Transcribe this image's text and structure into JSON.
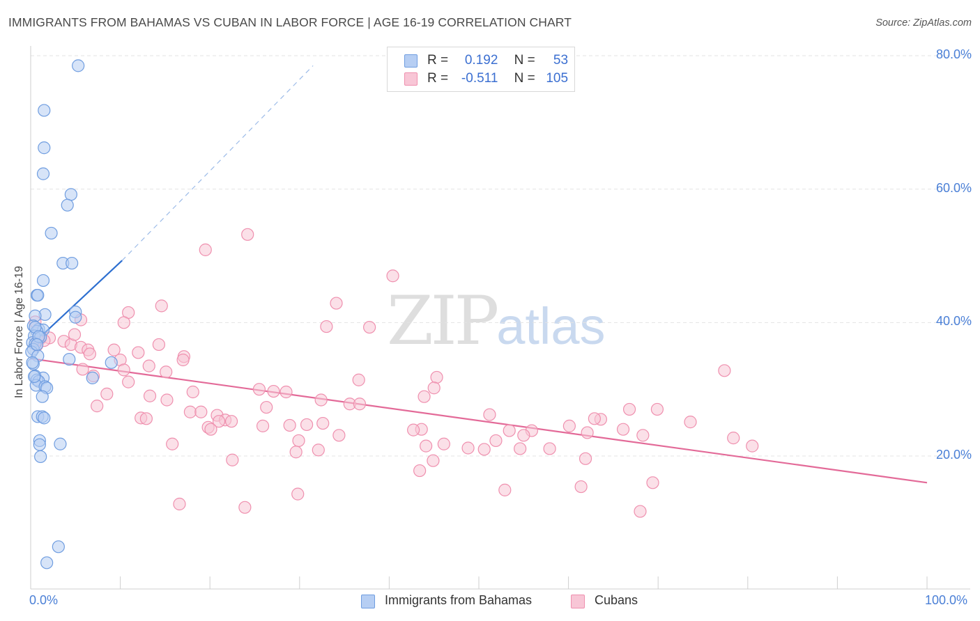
{
  "title": "IMMIGRANTS FROM BAHAMAS VS CUBAN IN LABOR FORCE | AGE 16-19 CORRELATION CHART",
  "source": "Source: ZipAtlas.com",
  "watermark": {
    "zip": "ZIP",
    "atlas": "atlas"
  },
  "colors": {
    "blue": "#6f9de0",
    "blue_fill": "#b6cef3",
    "blue_line": "#2d6fd0",
    "pink": "#ef8fae",
    "pink_fill": "#f8c6d6",
    "pink_line": "#e36a98",
    "tick_text": "#4a7fd6"
  },
  "legend": {
    "rows": [
      {
        "r_label": "R =",
        "r_value": "0.192",
        "n_label": "N =",
        "n_value": "53"
      },
      {
        "r_label": "R =",
        "r_value": "-0.511",
        "n_label": "N =",
        "n_value": "105"
      }
    ]
  },
  "bottom_legend": {
    "series1": "Immigrants from Bahamas",
    "series2": "Cubans"
  },
  "chart_data": {
    "type": "scatter",
    "title": "IMMIGRANTS FROM BAHAMAS VS CUBAN IN LABOR FORCE | AGE 16-19 CORRELATION CHART",
    "xlabel": "",
    "ylabel": "In Labor Force | Age 16-19",
    "xlim": [
      0,
      100
    ],
    "ylim": [
      0,
      82
    ],
    "x_tick_labels": [
      "0.0%",
      "100.0%"
    ],
    "y_ticks": [
      20,
      40,
      60,
      80
    ],
    "y_tick_labels": [
      "20.0%",
      "40.0%",
      "60.0%",
      "80.0%"
    ],
    "grid": true,
    "series": [
      {
        "name": "Immigrants from Bahamas",
        "points": [
          [
            5.3,
            78.5
          ],
          [
            1.5,
            71.8
          ],
          [
            1.5,
            66.2
          ],
          [
            1.4,
            62.3
          ],
          [
            4.5,
            59.2
          ],
          [
            4.1,
            57.6
          ],
          [
            2.3,
            53.4
          ],
          [
            3.6,
            48.9
          ],
          [
            4.6,
            48.9
          ],
          [
            1.4,
            46.3
          ],
          [
            0.7,
            44.1
          ],
          [
            0.8,
            44.1
          ],
          [
            5.0,
            41.6
          ],
          [
            1.6,
            41.2
          ],
          [
            0.5,
            41.0
          ],
          [
            5.0,
            40.8
          ],
          [
            0.3,
            39.5
          ],
          [
            0.9,
            39.0
          ],
          [
            1.4,
            38.9
          ],
          [
            0.7,
            38.7
          ],
          [
            0.4,
            38.0
          ],
          [
            1.1,
            37.8
          ],
          [
            0.2,
            37.0
          ],
          [
            0.5,
            36.8
          ],
          [
            0.3,
            36.0
          ],
          [
            0.1,
            35.6
          ],
          [
            0.8,
            35.0
          ],
          [
            4.3,
            34.5
          ],
          [
            9.0,
            34.0
          ],
          [
            0.3,
            33.8
          ],
          [
            0.5,
            32.0
          ],
          [
            1.4,
            31.7
          ],
          [
            0.7,
            31.4
          ],
          [
            0.9,
            31.2
          ],
          [
            6.9,
            31.7
          ],
          [
            0.6,
            30.6
          ],
          [
            1.6,
            30.4
          ],
          [
            1.8,
            30.2
          ],
          [
            1.3,
            28.9
          ],
          [
            0.8,
            25.9
          ],
          [
            1.3,
            25.9
          ],
          [
            1.5,
            25.7
          ],
          [
            1.0,
            22.3
          ],
          [
            3.3,
            21.8
          ],
          [
            1.0,
            21.7
          ],
          [
            1.1,
            19.9
          ],
          [
            0.5,
            39.3
          ],
          [
            0.9,
            37.9
          ],
          [
            0.4,
            31.9
          ],
          [
            0.7,
            36.7
          ],
          [
            3.1,
            6.4
          ],
          [
            1.8,
            4.0
          ],
          [
            0.2,
            34.0
          ]
        ]
      },
      {
        "name": "Cubans",
        "points": [
          [
            24.2,
            53.2
          ],
          [
            19.5,
            50.9
          ],
          [
            40.4,
            47.0
          ],
          [
            34.1,
            42.9
          ],
          [
            14.6,
            42.5
          ],
          [
            10.9,
            41.5
          ],
          [
            10.4,
            40.0
          ],
          [
            5.6,
            40.4
          ],
          [
            0.5,
            40.1
          ],
          [
            33.0,
            39.4
          ],
          [
            37.8,
            39.3
          ],
          [
            1.1,
            37.6
          ],
          [
            2.1,
            37.7
          ],
          [
            1.5,
            37.3
          ],
          [
            3.7,
            37.2
          ],
          [
            4.5,
            36.7
          ],
          [
            0.7,
            36.6
          ],
          [
            14.3,
            36.7
          ],
          [
            9.3,
            35.9
          ],
          [
            5.6,
            36.3
          ],
          [
            6.4,
            35.9
          ],
          [
            12.0,
            35.5
          ],
          [
            6.6,
            35.3
          ],
          [
            17.1,
            34.9
          ],
          [
            17.0,
            34.4
          ],
          [
            10.0,
            34.4
          ],
          [
            13.2,
            33.5
          ],
          [
            5.8,
            33.0
          ],
          [
            10.4,
            32.9
          ],
          [
            15.1,
            32.6
          ],
          [
            77.4,
            32.8
          ],
          [
            7.0,
            32.0
          ],
          [
            45.3,
            31.8
          ],
          [
            36.6,
            31.4
          ],
          [
            10.9,
            31.1
          ],
          [
            45.0,
            30.2
          ],
          [
            25.5,
            30.0
          ],
          [
            18.1,
            29.6
          ],
          [
            27.1,
            29.7
          ],
          [
            28.5,
            29.6
          ],
          [
            8.5,
            29.3
          ],
          [
            43.9,
            28.9
          ],
          [
            32.4,
            28.4
          ],
          [
            15.2,
            28.4
          ],
          [
            35.6,
            27.8
          ],
          [
            36.7,
            27.8
          ],
          [
            7.4,
            27.5
          ],
          [
            26.3,
            27.3
          ],
          [
            66.8,
            27.0
          ],
          [
            69.9,
            27.0
          ],
          [
            17.8,
            26.6
          ],
          [
            19.0,
            26.6
          ],
          [
            20.8,
            26.1
          ],
          [
            51.2,
            26.2
          ],
          [
            63.6,
            25.5
          ],
          [
            62.9,
            25.6
          ],
          [
            12.3,
            25.7
          ],
          [
            12.9,
            25.6
          ],
          [
            21.7,
            25.4
          ],
          [
            21.0,
            25.2
          ],
          [
            22.4,
            25.2
          ],
          [
            73.6,
            25.1
          ],
          [
            60.1,
            24.5
          ],
          [
            25.9,
            24.5
          ],
          [
            28.9,
            24.6
          ],
          [
            30.8,
            24.7
          ],
          [
            32.6,
            24.9
          ],
          [
            19.8,
            24.3
          ],
          [
            20.1,
            24.0
          ],
          [
            43.6,
            24.0
          ],
          [
            42.7,
            23.9
          ],
          [
            53.4,
            23.8
          ],
          [
            55.9,
            23.8
          ],
          [
            66.1,
            24.0
          ],
          [
            62.1,
            23.5
          ],
          [
            55.0,
            23.1
          ],
          [
            68.3,
            23.1
          ],
          [
            34.4,
            23.1
          ],
          [
            78.4,
            22.7
          ],
          [
            29.9,
            22.3
          ],
          [
            51.9,
            22.3
          ],
          [
            46.1,
            21.8
          ],
          [
            15.8,
            21.8
          ],
          [
            44.1,
            21.5
          ],
          [
            80.5,
            21.5
          ],
          [
            48.8,
            21.2
          ],
          [
            54.6,
            21.1
          ],
          [
            50.6,
            21.0
          ],
          [
            57.9,
            21.1
          ],
          [
            32.1,
            20.9
          ],
          [
            29.6,
            20.6
          ],
          [
            61.9,
            19.6
          ],
          [
            44.9,
            19.3
          ],
          [
            22.5,
            19.4
          ],
          [
            43.4,
            17.8
          ],
          [
            69.4,
            16.0
          ],
          [
            52.9,
            14.9
          ],
          [
            61.4,
            15.4
          ],
          [
            29.8,
            14.3
          ],
          [
            16.6,
            12.8
          ],
          [
            23.9,
            12.3
          ],
          [
            68.0,
            11.7
          ],
          [
            13.3,
            29.0
          ],
          [
            4.9,
            38.2
          ],
          [
            0.8,
            37.4
          ]
        ]
      }
    ],
    "trend_lines": [
      {
        "name": "Immigrants from Bahamas",
        "x": [
          0,
          10.2
        ],
        "y": [
          36.5,
          49.3
        ],
        "dashed_extension_to": [
          31.5,
          78.5
        ]
      },
      {
        "name": "Cubans",
        "x": [
          0,
          100
        ],
        "y": [
          34.6,
          16.0
        ]
      }
    ]
  }
}
